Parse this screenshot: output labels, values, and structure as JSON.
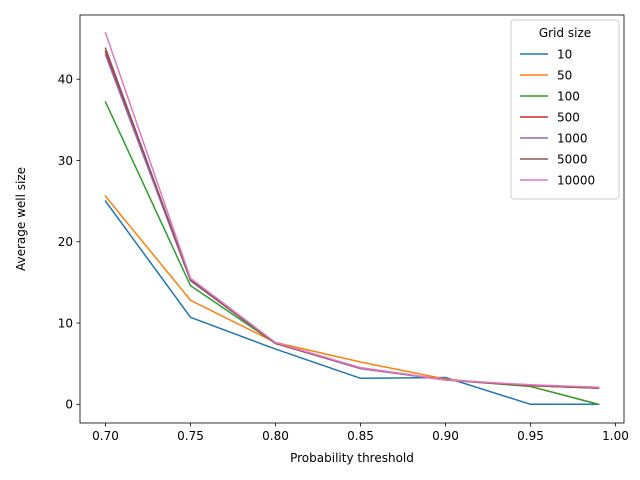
{
  "chart_data": {
    "type": "line",
    "title": "",
    "xlabel": "Probability threshold",
    "ylabel": "Average well size",
    "xlim": [
      0.685,
      1.005
    ],
    "ylim": [
      -2.3,
      47.9
    ],
    "xticks": [
      0.7,
      0.75,
      0.8,
      0.85,
      0.9,
      0.95,
      1.0
    ],
    "xtick_labels": [
      "0.70",
      "0.75",
      "0.80",
      "0.85",
      "0.90",
      "0.95",
      "1.00"
    ],
    "yticks": [
      0,
      10,
      20,
      30,
      40
    ],
    "ytick_labels": [
      "0",
      "10",
      "20",
      "30",
      "40"
    ],
    "grid": false,
    "legend": {
      "title": "Grid size",
      "placement": "top-right"
    },
    "x": [
      0.7,
      0.75,
      0.8,
      0.85,
      0.9,
      0.95,
      0.99
    ],
    "series": [
      {
        "name": "10",
        "color": "#1f77b4",
        "values": [
          25.0,
          10.7,
          6.8,
          3.2,
          3.3,
          0.0,
          0.0
        ]
      },
      {
        "name": "50",
        "color": "#ff7f0e",
        "values": [
          25.6,
          12.8,
          7.6,
          5.2,
          3.1,
          2.2,
          0.0
        ]
      },
      {
        "name": "100",
        "color": "#2ca02c",
        "values": [
          37.2,
          14.6,
          7.5,
          4.4,
          3.0,
          2.2,
          0.0
        ]
      },
      {
        "name": "500",
        "color": "#d62728",
        "values": [
          43.4,
          15.3,
          7.5,
          4.4,
          3.0,
          2.3,
          2.0
        ]
      },
      {
        "name": "1000",
        "color": "#9467bd",
        "values": [
          43.0,
          15.2,
          7.5,
          4.4,
          3.0,
          2.3,
          2.0
        ]
      },
      {
        "name": "5000",
        "color": "#8c564b",
        "values": [
          43.8,
          15.3,
          7.5,
          4.5,
          3.0,
          2.3,
          2.0
        ]
      },
      {
        "name": "10000",
        "color": "#e377c2",
        "values": [
          45.7,
          15.5,
          7.6,
          4.5,
          3.0,
          2.4,
          2.1
        ]
      }
    ]
  }
}
